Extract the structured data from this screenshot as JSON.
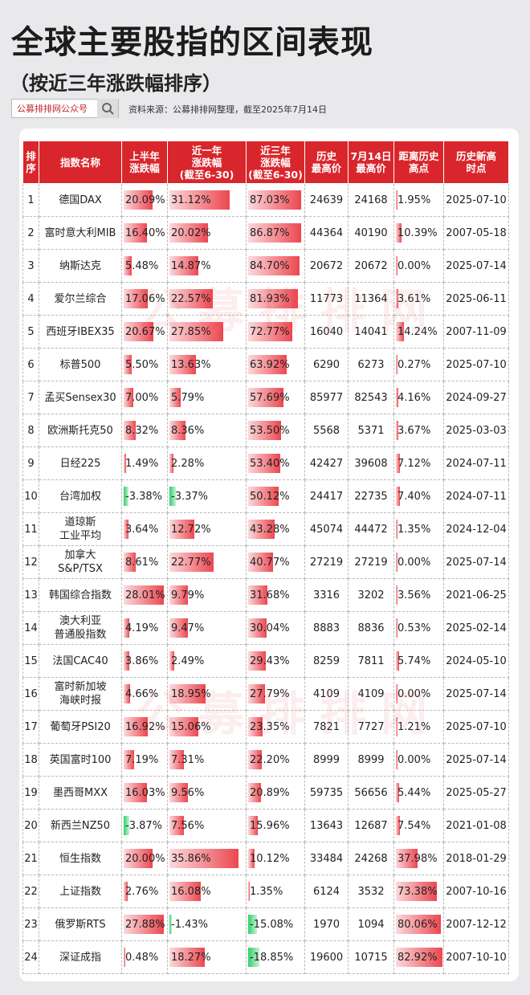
{
  "header": {
    "title": "全球主要股指的区间表现",
    "subtitle": "（按近三年涨跌幅排序）",
    "search_box": "公募排排网公众号",
    "source": "资料来源：公募排排网整理，截至2025年7月14日"
  },
  "watermark": "公募排排网",
  "table": {
    "columns": [
      "排\n序",
      "指数名称",
      "上半年\n涨跌幅",
      "近一年\n涨跌幅\n(截至6-30)",
      "近三年\n涨跌幅\n(截至6-30)",
      "历史\n最高价",
      "7月14日\n最高价",
      "距离历史\n高点",
      "历史新高\n时点"
    ],
    "rows": [
      [
        "1",
        "德国DAX",
        "20.09%",
        "31.12%",
        "87.03%",
        "24639",
        "24168",
        "1.95%",
        "2025-07-10"
      ],
      [
        "2",
        "富时意大利MIB",
        "16.40%",
        "20.02%",
        "86.87%",
        "44364",
        "40190",
        "10.39%",
        "2007-05-18"
      ],
      [
        "3",
        "纳斯达克",
        "5.48%",
        "14.87%",
        "84.70%",
        "20672",
        "20672",
        "0.00%",
        "2025-07-14"
      ],
      [
        "4",
        "爱尔兰综合",
        "17.06%",
        "22.57%",
        "81.93%",
        "11773",
        "11364",
        "3.61%",
        "2025-06-11"
      ],
      [
        "5",
        "西班牙IBEX35",
        "20.67%",
        "27.85%",
        "72.77%",
        "16040",
        "14041",
        "14.24%",
        "2007-11-09"
      ],
      [
        "6",
        "标普500",
        "5.50%",
        "13.63%",
        "63.92%",
        "6290",
        "6273",
        "0.27%",
        "2025-07-10"
      ],
      [
        "7",
        "孟买Sensex30",
        "7.00%",
        "5.79%",
        "57.69%",
        "85977",
        "82543",
        "4.16%",
        "2024-09-27"
      ],
      [
        "8",
        "欧洲斯托克50",
        "8.32%",
        "8.36%",
        "53.50%",
        "5568",
        "5371",
        "3.67%",
        "2025-03-03"
      ],
      [
        "9",
        "日经225",
        "1.49%",
        "2.28%",
        "53.40%",
        "42427",
        "39608",
        "7.12%",
        "2024-07-11"
      ],
      [
        "10",
        "台湾加权",
        "-3.38%",
        "-3.37%",
        "50.12%",
        "24417",
        "22735",
        "7.40%",
        "2024-07-11"
      ],
      [
        "11",
        "道琼斯\n工业平均",
        "3.64%",
        "12.72%",
        "43.28%",
        "45074",
        "44472",
        "1.35%",
        "2024-12-04"
      ],
      [
        "12",
        "加拿大\nS&P/TSX",
        "8.61%",
        "22.77%",
        "40.77%",
        "27219",
        "27219",
        "0.00%",
        "2025-07-14"
      ],
      [
        "13",
        "韩国综合指数",
        "28.01%",
        "9.79%",
        "31.68%",
        "3316",
        "3202",
        "3.56%",
        "2021-06-25"
      ],
      [
        "14",
        "澳大利亚\n普通股指数",
        "4.19%",
        "9.47%",
        "30.04%",
        "8883",
        "8836",
        "0.53%",
        "2025-02-14"
      ],
      [
        "15",
        "法国CAC40",
        "3.86%",
        "2.49%",
        "29.43%",
        "8259",
        "7811",
        "5.74%",
        "2024-05-10"
      ],
      [
        "16",
        "富时新加坡\n海峡时报",
        "4.66%",
        "18.95%",
        "27.79%",
        "4109",
        "4109",
        "0.00%",
        "2025-07-14"
      ],
      [
        "17",
        "葡萄牙PSI20",
        "16.92%",
        "15.06%",
        "23.35%",
        "7821",
        "7727",
        "1.21%",
        "2025-07-10"
      ],
      [
        "18",
        "英国富时100",
        "7.19%",
        "7.31%",
        "22.20%",
        "8999",
        "8999",
        "0.00%",
        "2025-07-14"
      ],
      [
        "19",
        "墨西哥MXX",
        "16.03%",
        "9.56%",
        "20.89%",
        "59735",
        "56656",
        "5.44%",
        "2025-05-27"
      ],
      [
        "20",
        "新西兰NZ50",
        "-3.87%",
        "7.56%",
        "15.96%",
        "13643",
        "12687",
        "7.54%",
        "2021-01-08"
      ],
      [
        "21",
        "恒生指数",
        "20.00%",
        "35.86%",
        "10.12%",
        "33484",
        "24268",
        "37.98%",
        "2018-01-29"
      ],
      [
        "22",
        "上证指数",
        "2.76%",
        "16.08%",
        "1.35%",
        "6124",
        "3532",
        "73.38%",
        "2007-10-16"
      ],
      [
        "23",
        "俄罗斯RTS",
        "27.88%",
        "-1.43%",
        "-15.08%",
        "1970",
        "1094",
        "80.06%",
        "2007-12-12"
      ],
      [
        "24",
        "深证成指",
        "0.48%",
        "18.27%",
        "-18.85%",
        "19600",
        "10715",
        "82.92%",
        "2007-10-10"
      ]
    ]
  }
}
